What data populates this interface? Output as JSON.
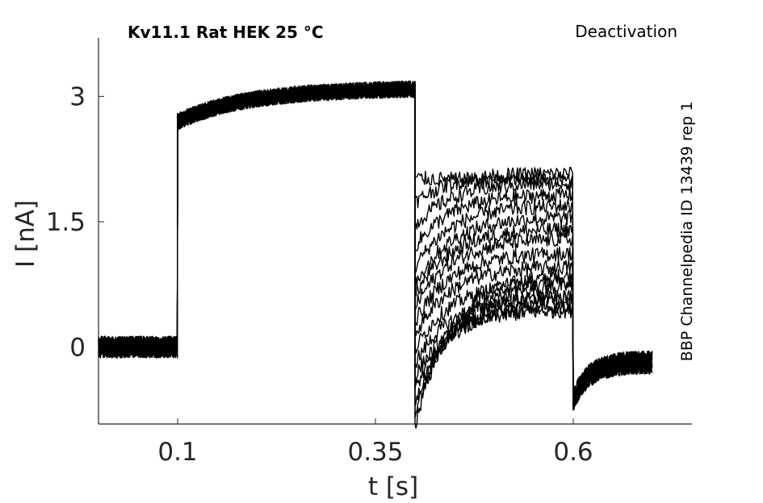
{
  "chart_data": {
    "type": "line",
    "title": "Kv11.1  Rat  HEK  25 °C",
    "subtitle": "Deactivation",
    "side_note": "BBP Channelpedia ID 13439 rep 1",
    "xlabel": "t [s]",
    "ylabel": "I [nA]",
    "xlim": [
      0.0,
      0.75
    ],
    "ylim": [
      -0.92,
      3.7
    ],
    "xticks": [
      0.1,
      0.35,
      0.6
    ],
    "xtick_labels": [
      "0.1",
      "0.35",
      "0.6"
    ],
    "yticks": [
      0,
      1.5,
      3
    ],
    "ytick_labels": [
      "0",
      "1.5",
      "3"
    ],
    "grid": false,
    "protocol": {
      "baseline_nA": 0.0,
      "prepulse_start_s": 0.1,
      "prepulse_end_s": 0.4,
      "prepulse_start_nA": 2.7,
      "prepulse_end_nA": 3.1,
      "test_end_s": 0.6,
      "recording_end_s": 0.7,
      "tail_end_nA": -0.18
    },
    "series": [
      {
        "start": -0.95,
        "end": 0.88
      },
      {
        "start": -0.82,
        "end": 0.75
      },
      {
        "start": -0.68,
        "end": 0.62
      },
      {
        "start": -0.52,
        "end": 0.5
      },
      {
        "start": -0.36,
        "end": 0.45
      },
      {
        "start": -0.2,
        "end": 0.6
      },
      {
        "start": -0.03,
        "end": 0.78
      },
      {
        "start": 0.15,
        "end": 0.97
      },
      {
        "start": 0.3,
        "end": 1.13
      },
      {
        "start": 0.48,
        "end": 1.3
      },
      {
        "start": 0.62,
        "end": 1.42
      },
      {
        "start": 0.75,
        "end": 1.56
      },
      {
        "start": 0.95,
        "end": 1.7
      },
      {
        "start": 1.2,
        "end": 1.83
      },
      {
        "start": 1.45,
        "end": 1.97
      },
      {
        "start": 1.73,
        "end": 2.08
      },
      {
        "start": 2.02,
        "end": 2.0
      }
    ]
  }
}
